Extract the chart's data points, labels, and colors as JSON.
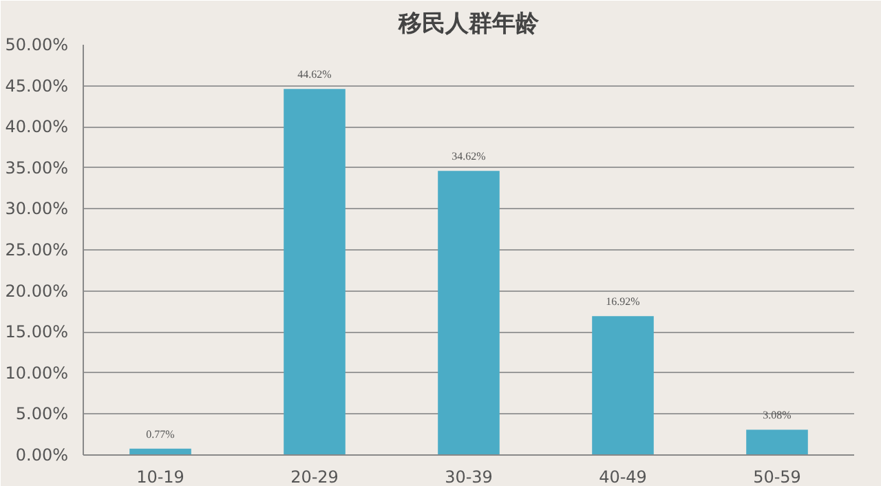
{
  "chart_data": {
    "type": "bar",
    "title": "移民人群年龄",
    "categories": [
      "10-19",
      "20-29",
      "30-39",
      "40-49",
      "50-59"
    ],
    "values": [
      0.77,
      44.62,
      34.62,
      16.92,
      3.08
    ],
    "value_labels": [
      "0.77%",
      "44.62%",
      "34.62%",
      "16.92%",
      "3.08%"
    ],
    "color": "#4bacc6",
    "ylim": [
      0,
      50
    ],
    "yticks": [
      {
        "value": 0,
        "label": "0.00%"
      },
      {
        "value": 5,
        "label": "5.00%"
      },
      {
        "value": 10,
        "label": "10.00%"
      },
      {
        "value": 15,
        "label": "15.00%"
      },
      {
        "value": 20,
        "label": "20.00%"
      },
      {
        "value": 25,
        "label": "25.00%"
      },
      {
        "value": 30,
        "label": "30.00%"
      },
      {
        "value": 35,
        "label": "35.00%"
      },
      {
        "value": 40,
        "label": "40.00%"
      },
      {
        "value": 45,
        "label": "45.00%"
      },
      {
        "value": 50,
        "label": "50.00%"
      }
    ],
    "grid": "y"
  }
}
